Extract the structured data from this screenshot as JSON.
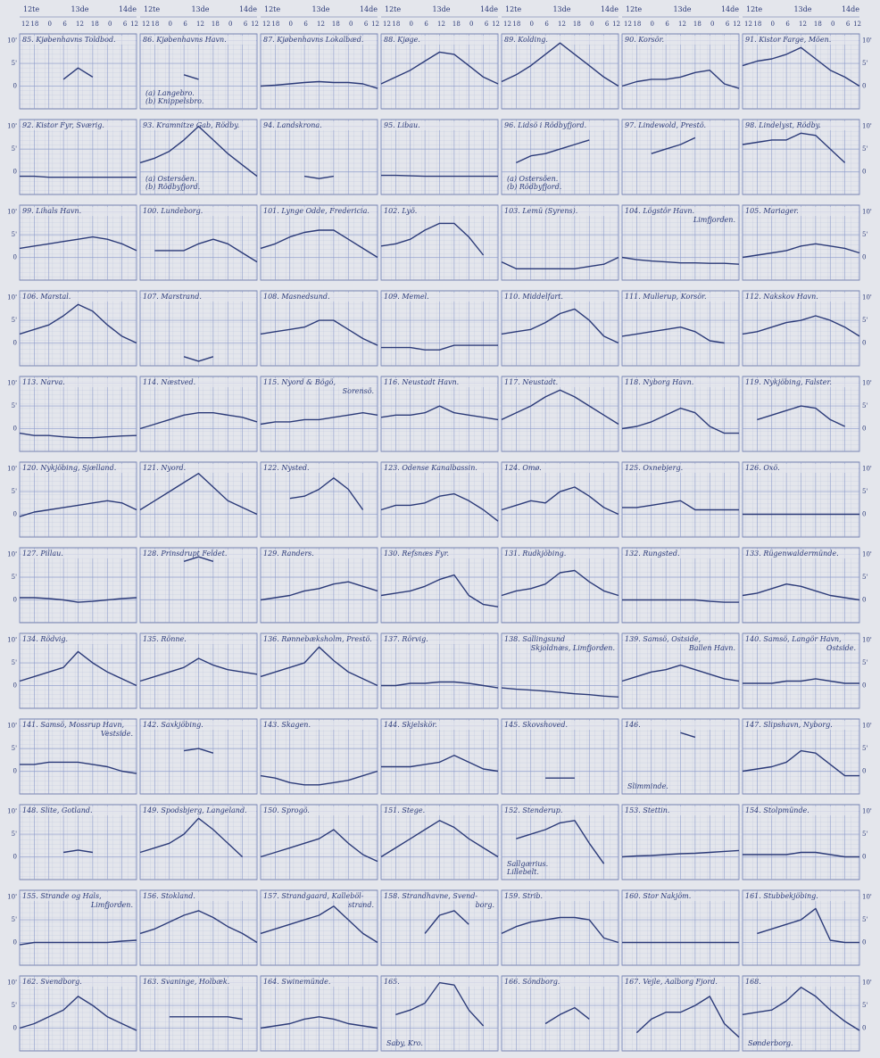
{
  "chart_data": {
    "type": "line",
    "days": [
      "12te",
      "13de",
      "14de"
    ],
    "x": [
      0,
      6,
      12,
      18,
      24,
      30,
      36,
      42,
      48
    ],
    "xlim": [
      0,
      48
    ],
    "xticks": [
      {
        "value": 0,
        "label": "12"
      },
      {
        "value": 6,
        "label": "18"
      },
      {
        "value": 12,
        "label": "0"
      },
      {
        "value": 18,
        "label": "6"
      },
      {
        "value": 24,
        "label": "12"
      },
      {
        "value": 30,
        "label": "18"
      },
      {
        "value": 36,
        "label": "0"
      },
      {
        "value": 42,
        "label": "6"
      },
      {
        "value": 48,
        "label": "12"
      }
    ],
    "ylim": [
      -5,
      11.5
    ],
    "yticks": [
      {
        "value": 10,
        "label": "10'"
      },
      {
        "value": 5,
        "label": "5'"
      },
      0
    ],
    "grid": true,
    "color": "#2b3a78",
    "panels": [
      {
        "title": "85. Kjøbenhavns Toldbod.",
        "values": [
          null,
          null,
          null,
          1.5,
          4,
          2,
          null,
          null,
          null
        ]
      },
      {
        "title": "86. Kjøbenhavns Havn.",
        "notes": [
          "(a) Langebro.",
          "(b) Knippelsbro."
        ],
        "values": [
          null,
          null,
          null,
          2.5,
          1.5,
          null,
          null,
          null,
          null
        ]
      },
      {
        "title": "87. Kjøbenhavns Lokalbæd.",
        "values": [
          0,
          0.2,
          0.5,
          0.8,
          1,
          0.8,
          0.8,
          0.5,
          -0.5
        ]
      },
      {
        "title": "88. Kjøge.",
        "values": [
          0.5,
          2,
          3.5,
          5.5,
          7.5,
          7,
          4.5,
          2,
          0.5
        ]
      },
      {
        "title": "89. Kolding.",
        "values": [
          1,
          2.5,
          4.5,
          7,
          9.5,
          7,
          4.5,
          2,
          0
        ]
      },
      {
        "title": "90. Korsör.",
        "values": [
          0,
          1,
          1.5,
          1.5,
          2,
          3,
          3.5,
          0.5,
          -0.5
        ]
      },
      {
        "title": "91. Kistor Farge, Möen.",
        "values": [
          4.5,
          5.5,
          6,
          7,
          8.5,
          6,
          3.5,
          2,
          0
        ]
      },
      {
        "title": "92. Kistor Fyr, Sværig.",
        "values": [
          -1,
          -1,
          -1.2,
          -1.2,
          -1.2,
          -1.2,
          -1.2,
          -1.2,
          -1.2
        ]
      },
      {
        "title": "93. Kramnitze Gab, Rödby.",
        "notes": [
          "(a) Ostersöen.",
          "(b) Rödbyfjord."
        ],
        "values": [
          2,
          3,
          4.5,
          7,
          10,
          7,
          4,
          1.5,
          -1
        ]
      },
      {
        "title": "94. Landskrona.",
        "values": [
          null,
          null,
          null,
          -1,
          -1.5,
          -1,
          null,
          null,
          null
        ]
      },
      {
        "title": "95. Libau.",
        "values": [
          -0.8,
          -0.8,
          -0.9,
          -1,
          -1,
          -1,
          -1,
          -1,
          -1
        ]
      },
      {
        "title": "96. Lidsö i Rödbyfjord.",
        "notes": [
          "(a) Ostersöen.",
          "(b) Rödbyfjord."
        ],
        "values": [
          null,
          2,
          3.5,
          4,
          5,
          6,
          7,
          null,
          null
        ]
      },
      {
        "title": "97. Lindewold, Prestö.",
        "values": [
          null,
          null,
          4,
          5,
          6,
          7.5,
          null,
          null,
          null
        ]
      },
      {
        "title": "98. Lindelyst, Rödby.",
        "values": [
          6,
          6.5,
          7,
          7,
          8.5,
          8,
          5,
          2,
          null
        ]
      },
      {
        "title": "99. Lihals Havn.",
        "values": [
          2,
          2.5,
          3,
          3.5,
          4,
          4.5,
          4,
          3,
          1.5
        ]
      },
      {
        "title": "100. Lundeborg.",
        "values": [
          null,
          1.5,
          1.5,
          1.5,
          3,
          4,
          3,
          1,
          -1
        ]
      },
      {
        "title": "101. Lynge Odde, Fredericia.",
        "values": [
          2,
          3,
          4.5,
          5.5,
          6,
          6,
          4,
          2,
          0
        ]
      },
      {
        "title": "102. Lyö.",
        "values": [
          2.5,
          3,
          4,
          6,
          7.5,
          7.5,
          4.5,
          0.5,
          null
        ]
      },
      {
        "title": "103. Lemü (Syrens).",
        "values": [
          -1,
          -2.5,
          -2.5,
          -2.5,
          -2.5,
          -2.5,
          -2,
          -1.5,
          0
        ]
      },
      {
        "title": "104. Lögstör Havn.",
        "title2": "Limfjorden.",
        "values": [
          0,
          -0.5,
          -0.8,
          -1,
          -1.2,
          -1.2,
          -1.3,
          -1.3,
          -1.5
        ]
      },
      {
        "title": "105. Mariager.",
        "values": [
          0,
          0.5,
          1,
          1.5,
          2.5,
          3,
          2.5,
          2,
          1
        ]
      },
      {
        "title": "106. Marstal.",
        "values": [
          2,
          3,
          4,
          6,
          8.5,
          7,
          4,
          1.5,
          0
        ]
      },
      {
        "title": "107. Marstrand.",
        "values": [
          null,
          null,
          null,
          -3,
          -4,
          -3,
          null,
          null,
          null
        ]
      },
      {
        "title": "108. Masnedsund.",
        "values": [
          2,
          2.5,
          3,
          3.5,
          5,
          5,
          3,
          1,
          -0.5
        ]
      },
      {
        "title": "109. Memel.",
        "values": [
          -1,
          -1,
          -1,
          -1.5,
          -1.5,
          -0.5,
          -0.5,
          -0.5,
          -0.5
        ]
      },
      {
        "title": "110. Middelfart.",
        "values": [
          2,
          2.5,
          3,
          4.5,
          6.5,
          7.5,
          5,
          1.5,
          0
        ]
      },
      {
        "title": "111. Mullerup, Korsör.",
        "values": [
          1.5,
          2,
          2.5,
          3,
          3.5,
          2.5,
          0.5,
          0,
          null
        ]
      },
      {
        "title": "112. Nakskov Havn.",
        "values": [
          2,
          2.5,
          3.5,
          4.5,
          5,
          6,
          5,
          3.5,
          1.5
        ]
      },
      {
        "title": "113. Narva.",
        "values": [
          -1,
          -1.5,
          -1.5,
          -1.8,
          -2,
          -2,
          -1.8,
          -1.6,
          -1.5
        ]
      },
      {
        "title": "114. Næstved.",
        "values": [
          0,
          1,
          2,
          3,
          3.5,
          3.5,
          3,
          2.5,
          1.5
        ]
      },
      {
        "title": "115. Nyord & Bögö,",
        "title2": "Sorensö.",
        "values": [
          1,
          1.5,
          1.5,
          2,
          2,
          2.5,
          3,
          3.5,
          3
        ]
      },
      {
        "title": "116. Neustadt Havn.",
        "values": [
          2.5,
          3,
          3,
          3.5,
          5,
          3.5,
          3,
          2.5,
          2
        ]
      },
      {
        "title": "117. Neustadt.",
        "values": [
          2,
          3.5,
          5,
          7,
          8.5,
          7,
          5,
          3,
          1
        ]
      },
      {
        "title": "118. Nyborg Havn.",
        "values": [
          0,
          0.5,
          1.5,
          3,
          4.5,
          3.5,
          0.5,
          -1,
          -1
        ]
      },
      {
        "title": "119. Nykjöbing, Falster.",
        "values": [
          null,
          2,
          3,
          4,
          5,
          4.5,
          2,
          0.5,
          null
        ]
      },
      {
        "title": "120. Nykjöbing, Sjælland.",
        "values": [
          -0.5,
          0.5,
          1,
          1.5,
          2,
          2.5,
          3,
          2.5,
          1
        ]
      },
      {
        "title": "121. Nyord.",
        "values": [
          1,
          3,
          5,
          7,
          9,
          6,
          3,
          1.5,
          0
        ]
      },
      {
        "title": "122. Nysted.",
        "values": [
          null,
          null,
          3.5,
          4,
          5.5,
          8,
          5.5,
          1,
          null
        ]
      },
      {
        "title": "123. Odense Kanalbassin.",
        "values": [
          1,
          2,
          2,
          2.5,
          4,
          4.5,
          3,
          1,
          -1.5
        ]
      },
      {
        "title": "124. Omø.",
        "values": [
          1,
          2,
          3,
          2.5,
          5,
          6,
          4,
          1.5,
          0
        ]
      },
      {
        "title": "125. Oxnebjerg.",
        "values": [
          1.5,
          1.5,
          2,
          2.5,
          3,
          1,
          1,
          1,
          1
        ]
      },
      {
        "title": "126. Oxö.",
        "values": [
          0,
          0,
          0,
          0,
          0,
          0,
          0,
          0,
          0
        ]
      },
      {
        "title": "127. Pillau.",
        "values": [
          0.5,
          0.5,
          0.3,
          0,
          -0.5,
          -0.3,
          0,
          0.3,
          0.5
        ]
      },
      {
        "title": "128. Prinsdrupt Feldet.",
        "values": [
          null,
          null,
          null,
          8.5,
          9.5,
          8.5,
          null,
          null,
          null
        ]
      },
      {
        "title": "129. Randers.",
        "values": [
          0,
          0.5,
          1,
          2,
          2.5,
          3.5,
          4,
          3,
          2
        ]
      },
      {
        "title": "130. Refsnæs Fyr.",
        "values": [
          1,
          1.5,
          2,
          3,
          4.5,
          5.5,
          1,
          -1,
          -1.5
        ]
      },
      {
        "title": "131. Rudkjöbing.",
        "values": [
          1,
          2,
          2.5,
          3.5,
          6,
          6.5,
          4,
          2,
          1
        ]
      },
      {
        "title": "132. Rungsted.",
        "values": [
          0,
          0,
          0,
          0,
          0,
          0,
          -0.3,
          -0.5,
          -0.5
        ]
      },
      {
        "title": "133. Rügenwaldermünde.",
        "values": [
          1,
          1.5,
          2.5,
          3.5,
          3,
          2,
          1,
          0.5,
          0
        ]
      },
      {
        "title": "134. Rödvig.",
        "values": [
          1,
          2,
          3,
          4,
          7.5,
          5,
          3,
          1.5,
          0
        ]
      },
      {
        "title": "135. Rönne.",
        "values": [
          1,
          2,
          3,
          4,
          6,
          4.5,
          3.5,
          3,
          2.5
        ]
      },
      {
        "title": "136. Rønnebæksholm, Prestö.",
        "values": [
          2,
          3,
          4,
          5,
          8.5,
          5.5,
          3,
          1.5,
          0
        ]
      },
      {
        "title": "137. Rörvig.",
        "values": [
          0,
          0,
          0.5,
          0.5,
          0.8,
          0.8,
          0.5,
          0,
          -0.5
        ]
      },
      {
        "title": "138. Sallingsund",
        "title2": "Skjoldnæs, Limfjorden.",
        "values": [
          -0.5,
          -0.8,
          -1,
          -1.2,
          -1.5,
          -1.8,
          -2,
          -2.3,
          -2.5
        ]
      },
      {
        "title": "139. Samsö, Ostside,",
        "title2": "Ballen Havn.",
        "values": [
          1,
          2,
          3,
          3.5,
          4.5,
          3.5,
          2.5,
          1.5,
          1
        ]
      },
      {
        "title": "140. Samsö, Langör Havn,",
        "title2": "Ostside.",
        "values": [
          0.5,
          0.5,
          0.5,
          1,
          1,
          1.5,
          1,
          0.5,
          0.5
        ]
      },
      {
        "title": "141. Samsö, Mossrup Havn,",
        "title2": "Vestside.",
        "values": [
          1.5,
          1.5,
          2,
          2,
          2,
          1.5,
          1,
          0,
          -0.5
        ]
      },
      {
        "title": "142. Saxkjöbing.",
        "values": [
          null,
          null,
          null,
          4.5,
          5,
          4,
          null,
          null,
          null
        ]
      },
      {
        "title": "143. Skagen.",
        "values": [
          -1,
          -1.5,
          -2.5,
          -3,
          -3,
          -2.5,
          -2,
          -1,
          0
        ]
      },
      {
        "title": "144. Skjelskör.",
        "values": [
          1,
          1,
          1,
          1.5,
          2,
          3.5,
          2,
          0.5,
          0
        ]
      },
      {
        "title": "145. Skovshoved.",
        "values": [
          null,
          null,
          null,
          -1.5,
          -1.5,
          -1.5,
          null,
          null,
          null
        ]
      },
      {
        "title": "146.",
        "notes": [
          "Slimminde."
        ],
        "values": [
          null,
          null,
          null,
          null,
          8.5,
          7.5,
          null,
          null,
          null
        ]
      },
      {
        "title": "147. Slipshavn, Nyborg.",
        "values": [
          0,
          0.5,
          1,
          2,
          4.5,
          4,
          1.5,
          -1,
          -1
        ]
      },
      {
        "title": "148. Slite, Gotland.",
        "values": [
          null,
          null,
          null,
          1,
          1.5,
          1,
          null,
          null,
          null
        ]
      },
      {
        "title": "149. Spodsbjerg, Langeland.",
        "values": [
          1,
          2,
          3,
          5,
          8.5,
          6,
          3,
          0,
          null
        ]
      },
      {
        "title": "150. Sprogö.",
        "values": [
          0,
          1,
          2,
          3,
          4,
          6,
          3,
          0.5,
          -1
        ]
      },
      {
        "title": "151. Stege.",
        "values": [
          0,
          2,
          4,
          6,
          8,
          6.5,
          4,
          2,
          0
        ]
      },
      {
        "title": "152. Stenderup.",
        "notes": [
          "Sallgærius.",
          "Lillebelt."
        ],
        "values": [
          null,
          4,
          5,
          6,
          7.5,
          8,
          3,
          -1.5,
          null
        ]
      },
      {
        "title": "153. Stettin.",
        "values": [
          0,
          0.2,
          0.3,
          0.5,
          0.7,
          0.8,
          1,
          1.2,
          1.4
        ]
      },
      {
        "title": "154. Stolpmünde.",
        "values": [
          0.5,
          0.5,
          0.5,
          0.5,
          1,
          1,
          0.5,
          0,
          0
        ]
      },
      {
        "title": "155. Strande og Hals,",
        "title2": "Limfjorden.",
        "values": [
          -0.5,
          0,
          0,
          0,
          0,
          0,
          0,
          0.3,
          0.5
        ]
      },
      {
        "title": "156. Stokland.",
        "values": [
          2,
          3,
          4.5,
          6,
          7,
          5.5,
          3.5,
          2,
          0
        ]
      },
      {
        "title": "157. Strandgaard, Kalleböl-",
        "title2": "strand.",
        "values": [
          2,
          3,
          4,
          5,
          6,
          8,
          5,
          2,
          0
        ]
      },
      {
        "title": "158. Strandhavne, Svend-",
        "title2": "borg.",
        "values": [
          null,
          null,
          null,
          2,
          6,
          7,
          4,
          null,
          null
        ]
      },
      {
        "title": "159. Strib.",
        "values": [
          2,
          3.5,
          4.5,
          5,
          5.5,
          5.5,
          5,
          1,
          0
        ]
      },
      {
        "title": "160. Stor Nakjöm.",
        "values": [
          0,
          0,
          0,
          0,
          0,
          0,
          0,
          0,
          0
        ]
      },
      {
        "title": "161. Stubbekjöbing.",
        "values": [
          null,
          2,
          3,
          4,
          5,
          7.5,
          0.5,
          0,
          0
        ]
      },
      {
        "title": "162. Svendborg.",
        "values": [
          0,
          1,
          2.5,
          4,
          7,
          5,
          2.5,
          1,
          -0.5
        ]
      },
      {
        "title": "163. Svaninge, Holbæk.",
        "values": [
          null,
          null,
          2.5,
          2.5,
          2.5,
          2.5,
          2.5,
          2,
          null
        ]
      },
      {
        "title": "164. Swinemünde.",
        "values": [
          0,
          0.5,
          1,
          2,
          2.5,
          2,
          1,
          0.5,
          0
        ]
      },
      {
        "title": "165.",
        "notes": [
          "Saby, Kro."
        ],
        "values": [
          null,
          3,
          4,
          5.5,
          10,
          9.5,
          4,
          0.5,
          null
        ]
      },
      {
        "title": "166. Söndborg.",
        "values": [
          null,
          null,
          null,
          1,
          3,
          4.5,
          2,
          null,
          null
        ]
      },
      {
        "title": "167. Vejle, Aalborg Fjord.",
        "values": [
          null,
          -1,
          2,
          3.5,
          3.5,
          5,
          7,
          1,
          -2
        ]
      },
      {
        "title": "168.",
        "notes": [
          "Sønderborg."
        ],
        "values": [
          3,
          3.5,
          4,
          6,
          9,
          7,
          4,
          1.5,
          -0.5
        ]
      }
    ]
  }
}
